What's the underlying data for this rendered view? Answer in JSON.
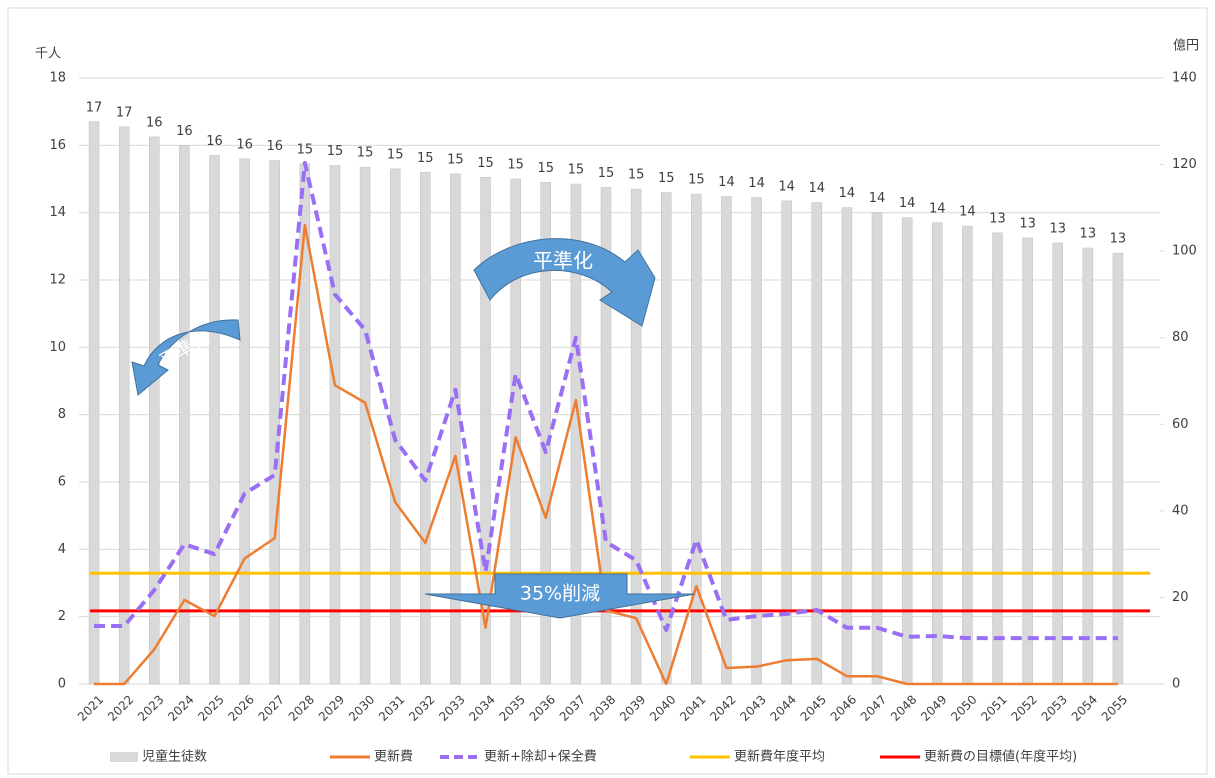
{
  "chart_data": {
    "type": "bar-line",
    "y_label": "千人",
    "y2_label": "億円",
    "categories": [
      "2021",
      "2022",
      "2023",
      "2024",
      "2025",
      "2026",
      "2027",
      "2028",
      "2029",
      "2030",
      "2031",
      "2032",
      "2033",
      "2034",
      "2035",
      "2036",
      "2037",
      "2038",
      "2039",
      "2040",
      "2041",
      "2042",
      "2043",
      "2044",
      "2045",
      "2046",
      "2047",
      "2048",
      "2049",
      "2050",
      "2051",
      "2052",
      "2053",
      "2054",
      "2055"
    ],
    "series": [
      {
        "name": "児童生徒数",
        "kind": "bar",
        "color": "#d9d9d9",
        "values": [
          16.7,
          16.55,
          16.25,
          16.0,
          15.7,
          15.6,
          15.55,
          15.45,
          15.4,
          15.35,
          15.3,
          15.2,
          15.15,
          15.05,
          15.0,
          14.9,
          14.85,
          14.75,
          14.7,
          14.6,
          14.55,
          14.48,
          14.45,
          14.35,
          14.3,
          14.15,
          14.0,
          13.85,
          13.7,
          13.6,
          13.4,
          13.25,
          13.1,
          12.95,
          12.8
        ],
        "value_labels": [
          "17",
          "17",
          "16",
          "16",
          "16",
          "16",
          "16",
          "15",
          "15",
          "15",
          "15",
          "15",
          "15",
          "15",
          "15",
          "15",
          "15",
          "15",
          "15",
          "15",
          "15",
          "14",
          "14",
          "14",
          "14",
          "14",
          "14",
          "14",
          "14",
          "14",
          "13",
          "13",
          "13",
          "13",
          "13"
        ]
      },
      {
        "name": "更新費",
        "kind": "line",
        "axis": "y2",
        "color": "#ed7d31",
        "values": [
          0,
          0,
          8,
          19.4,
          15.7,
          29,
          33.7,
          106,
          69,
          65,
          42,
          32.6,
          52.7,
          13,
          57,
          38.4,
          65.6,
          17,
          15.2,
          0,
          22.6,
          3.7,
          4,
          5.5,
          5.8,
          1.8,
          1.8,
          0,
          0,
          0,
          0,
          0,
          0,
          0,
          0
        ]
      },
      {
        "name": "更新+除却+保全費",
        "kind": "line",
        "dashed": true,
        "axis": "y2",
        "color": "#9b6ff5",
        "values": [
          13.4,
          13.4,
          21.7,
          32.3,
          30,
          44,
          48.3,
          120.4,
          90,
          81.8,
          56.4,
          47,
          68,
          26,
          71.6,
          53.6,
          80,
          32.8,
          28.6,
          12.5,
          33.3,
          14.8,
          15.7,
          16.2,
          17.1,
          13,
          13,
          10.9,
          11.1,
          10.6,
          10.6,
          10.6,
          10.6,
          10.6,
          10.6
        ]
      }
    ],
    "reference_lines": [
      {
        "name": "更新費年度平均",
        "axis": "y2",
        "color": "#ffc000",
        "value": 25.6
      },
      {
        "name": "更新費の目標値(年度平均)",
        "axis": "y2",
        "color": "#ff0000",
        "value": 16.9
      }
    ],
    "annotations": [
      {
        "text": "平準化"
      },
      {
        "text": "平準化"
      },
      {
        "text": "35%削減"
      }
    ],
    "ylim": [
      0,
      18
    ],
    "yticks": [
      0,
      2,
      4,
      6,
      8,
      10,
      12,
      14,
      16,
      18
    ],
    "y2lim": [
      0,
      140
    ],
    "y2ticks": [
      0,
      20,
      40,
      60,
      80,
      100,
      120,
      140
    ],
    "grid": true
  }
}
